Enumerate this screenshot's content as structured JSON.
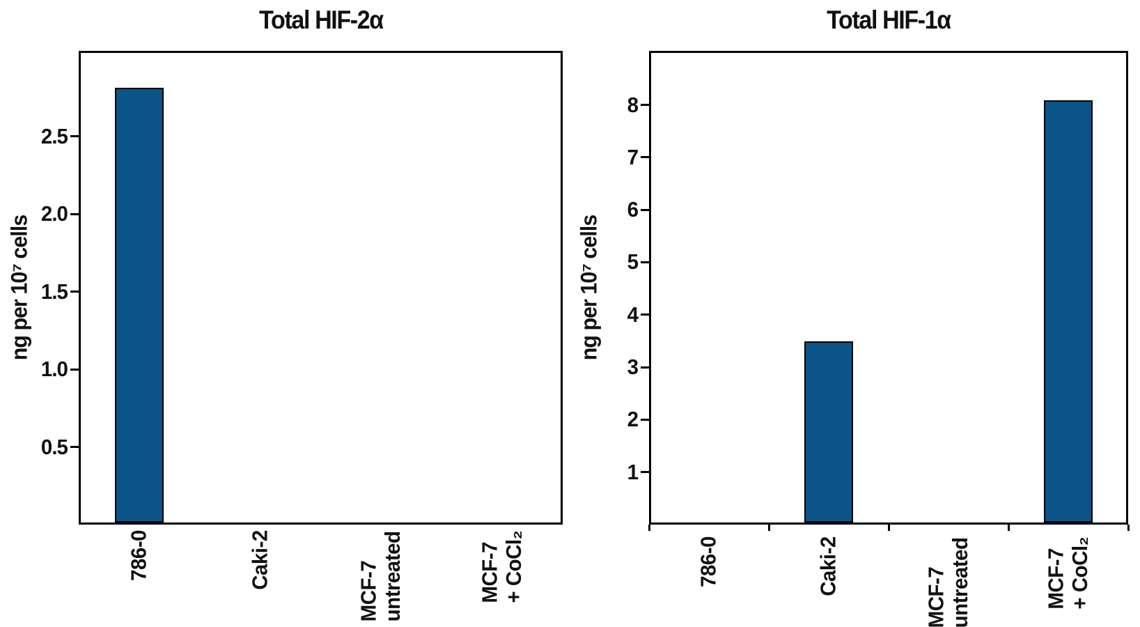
{
  "figure": {
    "bar_fill_color": "#0A5488",
    "bar_edge_color": "#000000",
    "axis_color": "#000000",
    "text_color": "#111111",
    "background_color": "#FFFFFF"
  },
  "chart_data": [
    {
      "type": "bar",
      "title": "Total HIF-2α",
      "ylabel": "ng per 10⁷ cells",
      "xlabel": "",
      "categories": [
        "786-0",
        "Caki-2",
        "MCF-7\nuntreated",
        "MCF-7\n+ CoCl₂"
      ],
      "values": [
        2.8,
        0,
        0,
        0
      ],
      "ylim": [
        0,
        3.05
      ],
      "yticks": [
        0.5,
        1.0,
        1.5,
        2.0,
        2.5
      ],
      "ytick_labels": [
        "0.5",
        "1.0",
        "1.5",
        "2.0",
        "2.5"
      ],
      "grid": false,
      "legend": null,
      "x_boundary_ticks": false
    },
    {
      "type": "bar",
      "title": "Total HIF-1α",
      "ylabel": "ng per 10⁷ cells",
      "xlabel": "",
      "categories": [
        "786-0",
        "Caki-2",
        "MCF-7\nuntreated",
        "MCF-7\n+ CoCl₂"
      ],
      "values": [
        0,
        3.45,
        0,
        8.05
      ],
      "ylim": [
        0,
        9.03
      ],
      "yticks": [
        1,
        2,
        3,
        4,
        5,
        6,
        7,
        8
      ],
      "ytick_labels": [
        "1",
        "2",
        "3",
        "4",
        "5",
        "6",
        "7",
        "8"
      ],
      "grid": false,
      "legend": null,
      "x_boundary_ticks": true
    }
  ]
}
